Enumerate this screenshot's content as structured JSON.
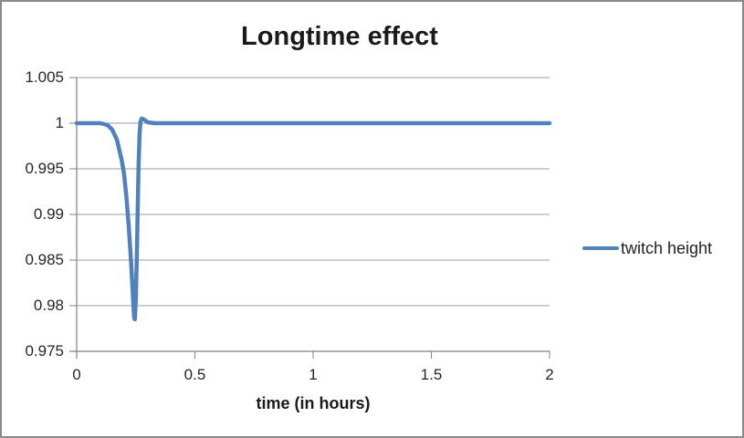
{
  "window": {
    "background": "#ffffff",
    "border_color": "#8a8a8a"
  },
  "colors": {
    "line": "#4F81BD",
    "gridline": "#9c9c9c",
    "axis": "#808080",
    "text": "#262626"
  },
  "chart_data": {
    "type": "line",
    "title": "Longtime effect",
    "xlabel": "time (in hours)",
    "ylabel": "",
    "xlim": [
      0,
      2
    ],
    "ylim": [
      0.975,
      1.005
    ],
    "x_ticks": [
      0,
      0.5,
      1,
      1.5,
      2
    ],
    "x_tick_labels": [
      "0",
      "0.5",
      "1",
      "1.5",
      "2"
    ],
    "y_ticks": [
      1.005,
      1,
      0.995,
      0.99,
      0.985,
      0.98,
      0.975
    ],
    "y_tick_labels": [
      "1.005",
      "1",
      "0.995",
      "0.99",
      "0.985",
      "0.98",
      "0.975"
    ],
    "grid": "horizontal",
    "legend_position": "right",
    "series": [
      {
        "name": "twitch height",
        "color": "#4F81BD",
        "points": [
          [
            0,
            1
          ],
          [
            0.1,
            1
          ],
          [
            0.13,
            0.9998
          ],
          [
            0.15,
            0.9993
          ],
          [
            0.17,
            0.9982
          ],
          [
            0.19,
            0.996
          ],
          [
            0.2,
            0.9945
          ],
          [
            0.21,
            0.992
          ],
          [
            0.22,
            0.9888
          ],
          [
            0.23,
            0.9848
          ],
          [
            0.235,
            0.9825
          ],
          [
            0.24,
            0.98
          ],
          [
            0.243,
            0.9787
          ],
          [
            0.246,
            0.9785
          ],
          [
            0.25,
            0.9805
          ],
          [
            0.254,
            0.985
          ],
          [
            0.258,
            0.9905
          ],
          [
            0.262,
            0.9955
          ],
          [
            0.266,
            0.9988
          ],
          [
            0.27,
            1.0002
          ],
          [
            0.275,
            1.0005
          ],
          [
            0.285,
            1.0004
          ],
          [
            0.3,
            1.0001
          ],
          [
            0.33,
            1
          ],
          [
            0.5,
            1
          ],
          [
            0.75,
            1
          ],
          [
            1,
            1
          ],
          [
            1.25,
            1
          ],
          [
            1.5,
            1
          ],
          [
            1.75,
            1
          ],
          [
            2,
            1
          ]
        ]
      }
    ]
  }
}
